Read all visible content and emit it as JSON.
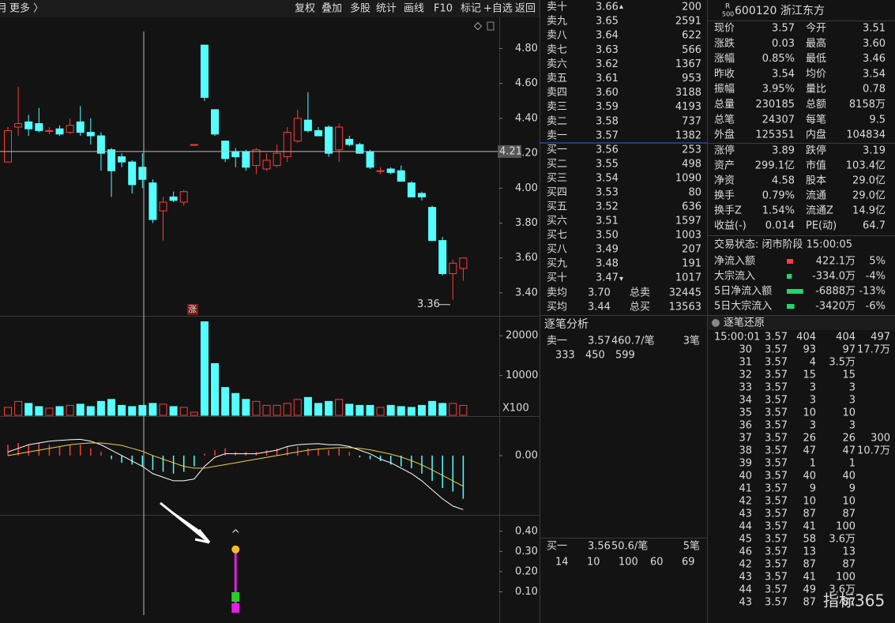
{
  "palette": {
    "up": "#ff3b3b",
    "down": "#21d66b",
    "flat": "#dcdcdc",
    "vol": "#f0c040",
    "blue": "#4aa3ff",
    "label": "#cfcfcf",
    "cyan": "#54ffff",
    "magenta": "#e020e0"
  },
  "toolbar": {
    "left": [
      "月",
      "更多 〉"
    ],
    "right": [
      "复权",
      "叠加",
      "多股",
      "统计",
      "画线",
      "F10",
      "标记",
      "+自选",
      "返回"
    ]
  },
  "kline": {
    "ylim": [
      3.3,
      4.92
    ],
    "yticks": [
      {
        "value": 4.8,
        "label": "4.80"
      },
      {
        "value": 4.6,
        "label": "4.60"
      },
      {
        "value": 4.4,
        "label": "4.40"
      },
      {
        "value": 4.2,
        "label": "4.20"
      },
      {
        "value": 4.0,
        "label": "4.00"
      },
      {
        "value": 3.8,
        "label": "3.80"
      },
      {
        "value": 3.6,
        "label": "3.60"
      },
      {
        "value": 3.4,
        "label": "3.40"
      }
    ],
    "crosshair": 4.21,
    "low": 3.36,
    "badge": "涨",
    "candles": [
      [
        4.15,
        4.35,
        4.15,
        4.33
      ],
      [
        4.35,
        4.58,
        4.3,
        4.37
      ],
      [
        4.38,
        4.42,
        4.3,
        4.34
      ],
      [
        4.37,
        4.46,
        4.32,
        4.33
      ],
      [
        4.33,
        4.35,
        4.31,
        4.33
      ],
      [
        4.34,
        4.36,
        4.3,
        4.31
      ],
      [
        4.32,
        4.4,
        4.31,
        4.36
      ],
      [
        4.38,
        4.47,
        4.3,
        4.32
      ],
      [
        4.32,
        4.4,
        4.25,
        4.3
      ],
      [
        4.3,
        4.32,
        4.1,
        4.2
      ],
      [
        4.22,
        4.23,
        3.95,
        4.1
      ],
      [
        4.18,
        4.2,
        4.12,
        4.15
      ],
      [
        4.15,
        4.16,
        3.97,
        4.02
      ],
      [
        4.12,
        4.2,
        4.0,
        4.05
      ],
      [
        4.03,
        4.05,
        3.8,
        3.82
      ],
      [
        3.87,
        3.95,
        3.7,
        3.92
      ],
      [
        3.95,
        3.98,
        3.92,
        3.93
      ],
      [
        3.92,
        3.99,
        3.9,
        3.98
      ],
      [
        4.25,
        4.25,
        4.25,
        4.25
      ],
      [
        4.82,
        4.82,
        4.5,
        4.52
      ],
      [
        4.45,
        4.45,
        4.3,
        4.31
      ],
      [
        4.27,
        4.27,
        4.15,
        4.17
      ],
      [
        4.21,
        4.23,
        4.12,
        4.18
      ],
      [
        4.21,
        4.22,
        4.1,
        4.12
      ],
      [
        4.13,
        4.23,
        4.08,
        4.22
      ],
      [
        4.11,
        4.2,
        4.1,
        4.16
      ],
      [
        4.13,
        4.25,
        4.12,
        4.2
      ],
      [
        4.18,
        4.35,
        4.15,
        4.32
      ],
      [
        4.27,
        4.45,
        4.26,
        4.4
      ],
      [
        4.39,
        4.55,
        4.32,
        4.33
      ],
      [
        4.33,
        4.35,
        4.3,
        4.3
      ],
      [
        4.35,
        4.36,
        4.18,
        4.2
      ],
      [
        4.22,
        4.37,
        4.15,
        4.35
      ],
      [
        4.28,
        4.3,
        4.24,
        4.25
      ],
      [
        4.25,
        4.26,
        4.2,
        4.2
      ],
      [
        4.21,
        4.22,
        4.11,
        4.12
      ],
      [
        4.1,
        4.12,
        4.08,
        4.1
      ],
      [
        4.11,
        4.12,
        4.08,
        4.09
      ],
      [
        4.1,
        4.13,
        4.04,
        4.04
      ],
      [
        4.03,
        4.04,
        3.95,
        3.95
      ],
      [
        3.97,
        3.98,
        3.93,
        3.95
      ],
      [
        3.89,
        3.9,
        3.7,
        3.7
      ],
      [
        3.7,
        3.72,
        3.5,
        3.51
      ],
      [
        3.51,
        3.59,
        3.36,
        3.57
      ],
      [
        3.54,
        3.6,
        3.47,
        3.6
      ]
    ]
  },
  "volume": {
    "ylim": [
      0,
      24000
    ],
    "yticks": [
      20000,
      10000
    ],
    "unit": "X100",
    "values": [
      2000,
      3500,
      3000,
      2200,
      1800,
      2200,
      2500,
      2800,
      2200,
      3500,
      4000,
      2500,
      2200,
      2500,
      3000,
      2800,
      2200,
      2000,
      800,
      23500,
      13000,
      7000,
      5500,
      4000,
      3500,
      2500,
      2500,
      3000,
      4000,
      4500,
      3000,
      3500,
      4000,
      2800,
      2500,
      2500,
      2000,
      2500,
      2200,
      2000,
      2500,
      3500,
      3000,
      3000,
      2500
    ]
  },
  "macd": {
    "ylim": [
      -0.16,
      0.07
    ],
    "yticks": [
      {
        "value": 0,
        "label": "0.00"
      }
    ],
    "hist": [
      0.03,
      0.035,
      0.03,
      0.035,
      0.03,
      0.025,
      0.03,
      0.03,
      0.02,
      0.01,
      -0.01,
      -0.02,
      -0.025,
      -0.03,
      -0.04,
      -0.045,
      -0.05,
      -0.045,
      -0.03,
      0.005,
      0.015,
      0.02,
      0.01,
      0.01,
      0.01,
      0.015,
      0.02,
      0.025,
      0.025,
      0.02,
      0.02,
      0.015,
      0.02,
      0.01,
      -0.005,
      -0.01,
      -0.015,
      -0.025,
      -0.03,
      -0.035,
      -0.05,
      -0.07,
      -0.09,
      -0.1,
      -0.12
    ],
    "dif": [
      0.01,
      0.02,
      0.03,
      0.035,
      0.04,
      0.042,
      0.044,
      0.045,
      0.04,
      0.03,
      0.015,
      0,
      -0.015,
      -0.03,
      -0.05,
      -0.06,
      -0.07,
      -0.07,
      -0.065,
      -0.03,
      -0.005,
      0.005,
      0.005,
      0.005,
      0.005,
      0.01,
      0.015,
      0.025,
      0.03,
      0.032,
      0.033,
      0.03,
      0.03,
      0.025,
      0.015,
      0.005,
      -0.01,
      -0.02,
      -0.035,
      -0.05,
      -0.07,
      -0.095,
      -0.12,
      -0.14,
      -0.15
    ],
    "dea": [
      0,
      0.005,
      0.01,
      0.015,
      0.02,
      0.025,
      0.03,
      0.033,
      0.035,
      0.035,
      0.032,
      0.028,
      0.02,
      0.012,
      0,
      -0.01,
      -0.02,
      -0.03,
      -0.035,
      -0.035,
      -0.03,
      -0.025,
      -0.02,
      -0.015,
      -0.01,
      -0.005,
      0,
      0.005,
      0.01,
      0.015,
      0.018,
      0.02,
      0.022,
      0.022,
      0.02,
      0.016,
      0.01,
      0.004,
      -0.004,
      -0.014,
      -0.026,
      -0.04,
      -0.055,
      -0.07,
      -0.085
    ]
  },
  "signal": {
    "ylim": [
      0,
      0.45
    ],
    "yticks": [
      {
        "value": 0.4,
        "label": "0.40"
      },
      {
        "value": 0.3,
        "label": "0.30"
      },
      {
        "value": 0.2,
        "label": "0.20"
      },
      {
        "value": 0.1,
        "label": "0.10"
      }
    ],
    "index": 22,
    "value": 0.31,
    "marker": "^"
  },
  "orderbook": {
    "ask_arrow": "▴",
    "bid_arrow": "▾",
    "asks": [
      [
        "卖十",
        "3.66",
        "200"
      ],
      [
        "卖九",
        "3.65",
        "2591"
      ],
      [
        "卖八",
        "3.64",
        "622"
      ],
      [
        "卖七",
        "3.63",
        "566"
      ],
      [
        "卖六",
        "3.62",
        "1367"
      ],
      [
        "卖五",
        "3.61",
        "953"
      ],
      [
        "卖四",
        "3.60",
        "3188"
      ],
      [
        "卖三",
        "3.59",
        "4193"
      ],
      [
        "卖二",
        "3.58",
        "737"
      ],
      [
        "卖一",
        "3.57",
        "1382"
      ]
    ],
    "bids": [
      [
        "买一",
        "3.56",
        "253",
        "up"
      ],
      [
        "买二",
        "3.55",
        "498",
        "up"
      ],
      [
        "买三",
        "3.54",
        "1090",
        "flat"
      ],
      [
        "买四",
        "3.53",
        "80",
        "down"
      ],
      [
        "买五",
        "3.52",
        "636",
        "down"
      ],
      [
        "买六",
        "3.51",
        "1597",
        "down"
      ],
      [
        "买七",
        "3.50",
        "1003",
        "down"
      ],
      [
        "买八",
        "3.49",
        "207",
        "down"
      ],
      [
        "买九",
        "3.48",
        "191",
        "down"
      ],
      [
        "买十",
        "3.47",
        "1017",
        "down"
      ]
    ],
    "summary": [
      [
        "卖均",
        "3.70",
        "总卖",
        "32445"
      ],
      [
        "买均",
        "3.44",
        "总买",
        "13563"
      ]
    ]
  },
  "analysis": {
    "title": "逐笔分析",
    "sell": [
      "卖一",
      "3.57",
      "460.7/笔",
      "3笔"
    ],
    "sell_sizes": [
      "333",
      "450",
      "599"
    ],
    "buy": [
      "买一",
      "3.56",
      "50.6/笔",
      "5笔"
    ],
    "buy_sizes": [
      "14",
      "10",
      "100",
      "60",
      "69"
    ]
  },
  "quote": {
    "badge": [
      "R",
      "500"
    ],
    "code": "600120",
    "name": "浙江东方",
    "rows": [
      [
        "现价",
        "3.57",
        "up",
        "今开",
        "3.51",
        "down"
      ],
      [
        "涨跌",
        "0.03",
        "up",
        "最高",
        "3.60",
        "up"
      ],
      [
        "涨幅",
        "0.85%",
        "up",
        "最低",
        "3.46",
        "down"
      ],
      [
        "昨收",
        "3.54",
        "flat",
        "均价",
        "3.54",
        "up"
      ],
      [
        "振幅",
        "3.95%",
        "flat",
        "量比",
        "0.78",
        "down"
      ],
      [
        "总量",
        "230185",
        "vol",
        "总额",
        "8158万",
        "blue"
      ],
      [
        "总笔",
        "24307",
        "flat",
        "每笔",
        "9.5",
        "flat"
      ],
      [
        "外盘",
        "125351",
        "up",
        "内盘",
        "104834",
        "down"
      ]
    ],
    "rows2": [
      [
        "涨停",
        "3.89",
        "up",
        "跌停",
        "3.19",
        "down"
      ],
      [
        "资产",
        "299.1亿",
        "flat",
        "市值",
        "103.4亿",
        "flat"
      ],
      [
        "净资",
        "4.58",
        "flat",
        "股本",
        "29.0亿",
        "flat"
      ],
      [
        "换手",
        "0.79%",
        "flat",
        "流通",
        "29.0亿",
        "flat"
      ],
      [
        "换手Z",
        "1.54%",
        "flat",
        "流通Z",
        "14.9亿",
        "flat"
      ],
      [
        "收益(-)",
        "0.014",
        "flat",
        "PE(动)",
        "64.7",
        "flat"
      ]
    ],
    "status": "交易状态: 闭市阶段 15:00:05",
    "flows": [
      {
        "label": "净流入额",
        "value": "422.1万",
        "pct": 5,
        "pct_label": "5%",
        "color": "up"
      },
      {
        "label": "大宗流入",
        "value": "-334.0万",
        "pct": -4,
        "pct_label": "-4%",
        "color": "down"
      },
      {
        "label": "5日净流入额",
        "value": "-6888万",
        "pct": -13,
        "pct_label": "-13%",
        "color": "down"
      },
      {
        "label": "5日大宗流入",
        "value": "-3420万",
        "pct": -6,
        "pct_label": "-6%",
        "color": "down"
      }
    ]
  },
  "trades": {
    "title": "逐笔还原",
    "rows": [
      [
        "15:00:01",
        "3.57",
        "404",
        "404",
        "497"
      ],
      [
        "30",
        "3.57",
        "93",
        "97",
        "17.7万"
      ],
      [
        "31",
        "3.57",
        "4",
        "3.5万"
      ],
      [
        "32",
        "3.57",
        "15",
        "15"
      ],
      [
        "33",
        "3.57",
        "3",
        "3"
      ],
      [
        "34",
        "3.57",
        "3",
        "3"
      ],
      [
        "35",
        "3.57",
        "10",
        "10"
      ],
      [
        "36",
        "3.57",
        "3",
        "3"
      ],
      [
        "37",
        "3.57",
        "26",
        "26",
        "300"
      ],
      [
        "38",
        "3.57",
        "47",
        "47",
        "10.7万"
      ],
      [
        "39",
        "3.57",
        "1",
        "1"
      ],
      [
        "40",
        "3.57",
        "40",
        "40"
      ],
      [
        "41",
        "3.57",
        "9",
        "9"
      ],
      [
        "42",
        "3.57",
        "10",
        "10"
      ],
      [
        "43",
        "3.57",
        "87",
        "87"
      ],
      [
        "44",
        "3.57",
        "41",
        "100"
      ],
      [
        "45",
        "3.57",
        "58",
        "3.6万"
      ],
      [
        "46",
        "3.57",
        "13",
        "13"
      ],
      [
        "42",
        "3.57",
        "87",
        "87"
      ],
      [
        "43",
        "3.57",
        "41",
        "100"
      ],
      [
        "44",
        "3.57",
        "49",
        "3.6万"
      ],
      [
        "43",
        "3.57",
        "87",
        "87"
      ]
    ]
  },
  "watermark": "指标365"
}
